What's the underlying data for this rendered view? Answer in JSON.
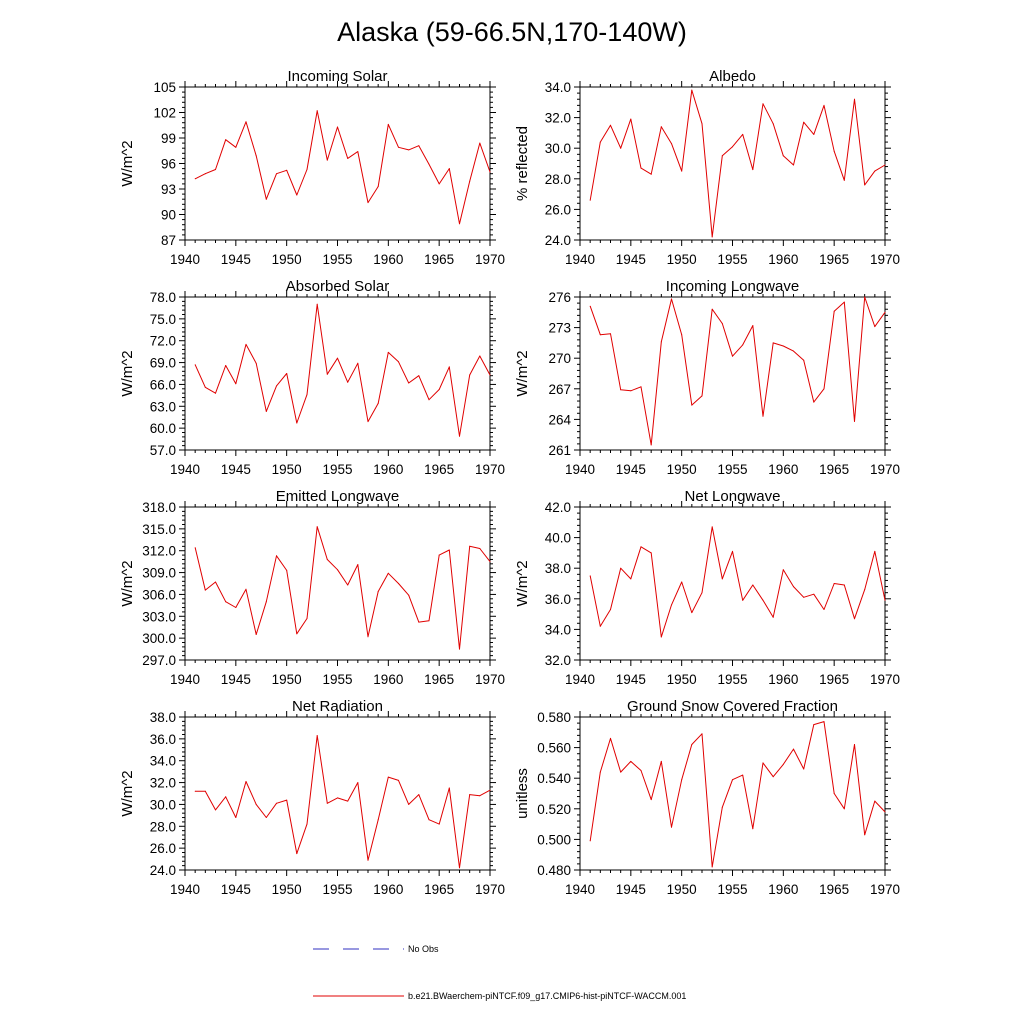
{
  "title": "Alaska (59-66.5N,170-140W)",
  "legend": {
    "entries": [
      {
        "label": "No Obs",
        "color": "#3030c0",
        "style": "dashed"
      },
      {
        "label": "b.e21.BWaerchem-piNTCF.f09_g17.CMIP6-hist-piNTCF-WACCM.001",
        "color": "#e00000",
        "style": "solid"
      }
    ]
  },
  "chart_data": [
    {
      "type": "line",
      "title": "Incoming Solar",
      "ylabel": "W/m^2",
      "xlim": [
        1940,
        1970
      ],
      "ylim": [
        87,
        105
      ],
      "yticks": [
        87,
        90,
        93,
        96,
        99,
        102,
        105
      ],
      "ytick_labels": [
        "87",
        "90",
        "93",
        "96",
        "99",
        "102",
        "105"
      ],
      "xticks": [
        1940,
        1945,
        1950,
        1955,
        1960,
        1965,
        1970
      ],
      "grid": false,
      "series": [
        {
          "color": "#e00000",
          "x": [
            1941,
            1942,
            1943,
            1944,
            1945,
            1946,
            1947,
            1948,
            1949,
            1950,
            1951,
            1952,
            1953,
            1954,
            1955,
            1956,
            1957,
            1958,
            1959,
            1960,
            1961,
            1962,
            1963,
            1964,
            1965,
            1966,
            1967,
            1968,
            1969,
            1970
          ],
          "values": [
            94.2,
            94.8,
            95.3,
            98.8,
            97.9,
            100.9,
            96.9,
            91.8,
            94.8,
            95.2,
            92.3,
            95.3,
            102.2,
            96.4,
            100.3,
            96.6,
            97.4,
            91.4,
            93.3,
            100.6,
            97.9,
            97.6,
            98.1,
            95.9,
            93.6,
            95.4,
            88.9,
            93.9,
            98.4,
            95.0
          ]
        }
      ]
    },
    {
      "type": "line",
      "title": "Albedo",
      "ylabel": "% reflected",
      "xlim": [
        1940,
        1970
      ],
      "ylim": [
        24,
        34
      ],
      "yticks": [
        24,
        26,
        28,
        30,
        32,
        34
      ],
      "ytick_labels": [
        "24.0",
        "26.0",
        "28.0",
        "30.0",
        "32.0",
        "34.0"
      ],
      "xticks": [
        1940,
        1945,
        1950,
        1955,
        1960,
        1965,
        1970
      ],
      "grid": false,
      "series": [
        {
          "color": "#e00000",
          "x": [
            1941,
            1942,
            1943,
            1944,
            1945,
            1946,
            1947,
            1948,
            1949,
            1950,
            1951,
            1952,
            1953,
            1954,
            1955,
            1956,
            1957,
            1958,
            1959,
            1960,
            1961,
            1962,
            1963,
            1964,
            1965,
            1966,
            1967,
            1968,
            1969,
            1970
          ],
          "values": [
            26.6,
            30.4,
            31.5,
            30.0,
            31.9,
            28.7,
            28.3,
            31.4,
            30.3,
            28.5,
            33.8,
            31.6,
            24.2,
            29.5,
            30.1,
            30.9,
            28.6,
            32.9,
            31.6,
            29.5,
            28.9,
            31.7,
            30.9,
            32.8,
            29.8,
            27.9,
            33.2,
            27.6,
            28.5,
            28.9
          ]
        }
      ]
    },
    {
      "type": "line",
      "title": "Absorbed Solar",
      "ylabel": "W/m^2",
      "xlim": [
        1940,
        1970
      ],
      "ylim": [
        57,
        78
      ],
      "yticks": [
        57,
        60,
        63,
        66,
        69,
        72,
        75,
        78
      ],
      "ytick_labels": [
        "57.0",
        "60.0",
        "63.0",
        "66.0",
        "69.0",
        "72.0",
        "75.0",
        "78.0"
      ],
      "xticks": [
        1940,
        1945,
        1950,
        1955,
        1960,
        1965,
        1970
      ],
      "grid": false,
      "series": [
        {
          "color": "#e00000",
          "x": [
            1941,
            1942,
            1943,
            1944,
            1945,
            1946,
            1947,
            1948,
            1949,
            1950,
            1951,
            1952,
            1953,
            1954,
            1955,
            1956,
            1957,
            1958,
            1959,
            1960,
            1961,
            1962,
            1963,
            1964,
            1965,
            1966,
            1967,
            1968,
            1969,
            1970
          ],
          "values": [
            68.7,
            65.6,
            64.8,
            68.6,
            66.1,
            71.5,
            68.9,
            62.3,
            65.8,
            67.5,
            60.7,
            64.6,
            77.0,
            67.4,
            69.6,
            66.3,
            68.9,
            60.9,
            63.4,
            70.4,
            69.1,
            66.2,
            67.2,
            63.9,
            65.3,
            68.4,
            58.9,
            67.3,
            69.9,
            67.3
          ]
        }
      ]
    },
    {
      "type": "line",
      "title": "Incoming Longwave",
      "ylabel": "W/m^2",
      "xlim": [
        1940,
        1970
      ],
      "ylim": [
        261,
        276
      ],
      "yticks": [
        261,
        264,
        267,
        270,
        273,
        276
      ],
      "ytick_labels": [
        "261",
        "264",
        "267",
        "270",
        "273",
        "276"
      ],
      "xticks": [
        1940,
        1945,
        1950,
        1955,
        1960,
        1965,
        1970
      ],
      "grid": false,
      "series": [
        {
          "color": "#e00000",
          "x": [
            1941,
            1942,
            1943,
            1944,
            1945,
            1946,
            1947,
            1948,
            1949,
            1950,
            1951,
            1952,
            1953,
            1954,
            1955,
            1956,
            1957,
            1958,
            1959,
            1960,
            1961,
            1962,
            1963,
            1964,
            1965,
            1966,
            1967,
            1968,
            1969,
            1970
          ],
          "values": [
            275.1,
            272.3,
            272.4,
            266.9,
            266.8,
            267.2,
            261.5,
            271.6,
            275.8,
            272.3,
            265.4,
            266.3,
            274.8,
            273.4,
            270.2,
            271.3,
            273.2,
            264.3,
            271.5,
            271.2,
            270.7,
            269.8,
            265.7,
            267.0,
            274.6,
            275.5,
            263.8,
            276.0,
            273.1,
            274.5
          ]
        }
      ]
    },
    {
      "type": "line",
      "title": "Emitted Longwave",
      "ylabel": "W/m^2",
      "xlim": [
        1940,
        1970
      ],
      "ylim": [
        297,
        318
      ],
      "yticks": [
        297,
        300,
        303,
        306,
        309,
        312,
        315,
        318
      ],
      "ytick_labels": [
        "297.0",
        "300.0",
        "303.0",
        "306.0",
        "309.0",
        "312.0",
        "315.0",
        "318.0"
      ],
      "xticks": [
        1940,
        1945,
        1950,
        1955,
        1960,
        1965,
        1970
      ],
      "grid": false,
      "series": [
        {
          "color": "#e00000",
          "x": [
            1941,
            1942,
            1943,
            1944,
            1945,
            1946,
            1947,
            1948,
            1949,
            1950,
            1951,
            1952,
            1953,
            1954,
            1955,
            1956,
            1957,
            1958,
            1959,
            1960,
            1961,
            1962,
            1963,
            1964,
            1965,
            1966,
            1967,
            1968,
            1969,
            1970
          ],
          "values": [
            312.4,
            306.6,
            307.7,
            305.0,
            304.2,
            306.7,
            300.5,
            305.0,
            311.3,
            309.3,
            300.6,
            302.7,
            315.3,
            310.8,
            309.4,
            307.3,
            310.1,
            300.2,
            306.4,
            308.9,
            307.5,
            305.9,
            302.2,
            302.4,
            311.4,
            312.1,
            298.5,
            312.6,
            312.3,
            310.5
          ]
        }
      ]
    },
    {
      "type": "line",
      "title": "Net Longwave",
      "ylabel": "W/m^2",
      "xlim": [
        1940,
        1970
      ],
      "ylim": [
        32,
        42
      ],
      "yticks": [
        32,
        34,
        36,
        38,
        40,
        42
      ],
      "ytick_labels": [
        "32.0",
        "34.0",
        "36.0",
        "38.0",
        "40.0",
        "42.0"
      ],
      "xticks": [
        1940,
        1945,
        1950,
        1955,
        1960,
        1965,
        1970
      ],
      "grid": false,
      "series": [
        {
          "color": "#e00000",
          "x": [
            1941,
            1942,
            1943,
            1944,
            1945,
            1946,
            1947,
            1948,
            1949,
            1950,
            1951,
            1952,
            1953,
            1954,
            1955,
            1956,
            1957,
            1958,
            1959,
            1960,
            1961,
            1962,
            1963,
            1964,
            1965,
            1966,
            1967,
            1968,
            1969,
            1970
          ],
          "values": [
            37.5,
            34.2,
            35.3,
            38.0,
            37.3,
            39.4,
            39.0,
            33.5,
            35.6,
            37.1,
            35.1,
            36.4,
            40.7,
            37.3,
            39.1,
            35.9,
            36.9,
            35.9,
            34.8,
            37.9,
            36.8,
            36.1,
            36.3,
            35.3,
            37.0,
            36.9,
            34.7,
            36.6,
            39.1,
            35.9
          ]
        }
      ]
    },
    {
      "type": "line",
      "title": "Net Radiation",
      "ylabel": "W/m^2",
      "xlim": [
        1940,
        1970
      ],
      "ylim": [
        24,
        38
      ],
      "yticks": [
        24,
        26,
        28,
        30,
        32,
        34,
        36,
        38
      ],
      "ytick_labels": [
        "24.0",
        "26.0",
        "28.0",
        "30.0",
        "32.0",
        "34.0",
        "36.0",
        "38.0"
      ],
      "xticks": [
        1940,
        1945,
        1950,
        1955,
        1960,
        1965,
        1970
      ],
      "grid": false,
      "series": [
        {
          "color": "#e00000",
          "x": [
            1941,
            1942,
            1943,
            1944,
            1945,
            1946,
            1947,
            1948,
            1949,
            1950,
            1951,
            1952,
            1953,
            1954,
            1955,
            1956,
            1957,
            1958,
            1959,
            1960,
            1961,
            1962,
            1963,
            1964,
            1965,
            1966,
            1967,
            1968,
            1969,
            1970
          ],
          "values": [
            31.2,
            31.2,
            29.5,
            30.7,
            28.8,
            32.1,
            30.0,
            28.8,
            30.1,
            30.4,
            25.5,
            28.2,
            36.3,
            30.1,
            30.6,
            30.3,
            32.0,
            24.9,
            28.6,
            32.5,
            32.2,
            30.0,
            30.9,
            28.6,
            28.2,
            31.5,
            24.2,
            30.9,
            30.8,
            31.3
          ]
        }
      ]
    },
    {
      "type": "line",
      "title": "Ground Snow Covered Fraction",
      "ylabel": "unitless",
      "xlim": [
        1940,
        1970
      ],
      "ylim": [
        0.48,
        0.58
      ],
      "yticks": [
        0.48,
        0.5,
        0.52,
        0.54,
        0.56,
        0.58
      ],
      "ytick_labels": [
        "0.480",
        "0.500",
        "0.520",
        "0.540",
        "0.560",
        "0.580"
      ],
      "xticks": [
        1940,
        1945,
        1950,
        1955,
        1960,
        1965,
        1970
      ],
      "grid": false,
      "series": [
        {
          "color": "#e00000",
          "x": [
            1941,
            1942,
            1943,
            1944,
            1945,
            1946,
            1947,
            1948,
            1949,
            1950,
            1951,
            1952,
            1953,
            1954,
            1955,
            1956,
            1957,
            1958,
            1959,
            1960,
            1961,
            1962,
            1963,
            1964,
            1965,
            1966,
            1967,
            1968,
            1969,
            1970
          ],
          "values": [
            0.499,
            0.544,
            0.566,
            0.544,
            0.551,
            0.545,
            0.526,
            0.551,
            0.508,
            0.539,
            0.562,
            0.569,
            0.482,
            0.521,
            0.539,
            0.542,
            0.507,
            0.55,
            0.541,
            0.549,
            0.559,
            0.546,
            0.575,
            0.577,
            0.53,
            0.52,
            0.562,
            0.503,
            0.525,
            0.518
          ]
        }
      ]
    }
  ]
}
